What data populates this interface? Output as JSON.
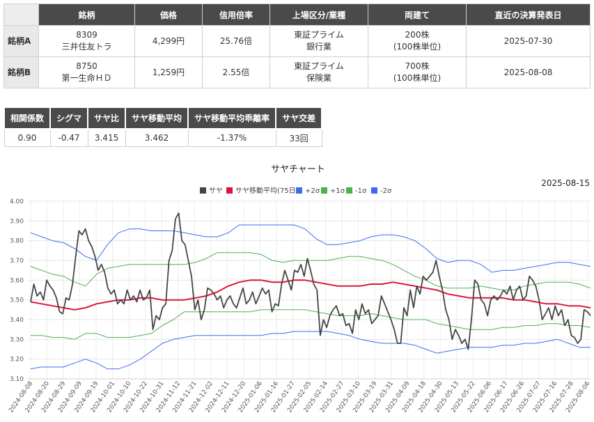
{
  "stock_table": {
    "headers": [
      "銘柄",
      "価格",
      "信用倍率",
      "上場区分/業種",
      "両建て",
      "直近の決算発表日"
    ],
    "rows": [
      {
        "label": "銘柄A",
        "code": "8309",
        "name": "三井住友トラ",
        "price": "4,299円",
        "margin_ratio": "25.76倍",
        "market": "東証プライム",
        "industry": "銀行業",
        "both": "200株",
        "unit": "(100株単位)",
        "earnings": "2025-07-30"
      },
      {
        "label": "銘柄B",
        "code": "8750",
        "name": "第一生命ＨＤ",
        "price": "1,259円",
        "margin_ratio": "2.55倍",
        "market": "東証プライム",
        "industry": "保険業",
        "both": "700株",
        "unit": "(100株単位)",
        "earnings": "2025-08-08"
      }
    ]
  },
  "stats_table": {
    "headers": [
      "相関係数",
      "シグマ",
      "サヤ比",
      "サヤ移動平均",
      "サヤ移動平均乖離率",
      "サヤ交差"
    ],
    "values": [
      "0.90",
      "-0.47",
      "3.415",
      "3.462",
      "-1.37%",
      "33回"
    ]
  },
  "chart_data": {
    "type": "line",
    "title": "サヤチャート",
    "date_label": "2025-08-15",
    "ylim": [
      3.1,
      4.0
    ],
    "yticks": [
      "4.00",
      "3.90",
      "3.80",
      "3.70",
      "3.60",
      "3.50",
      "3.40",
      "3.30",
      "3.20",
      "3.10"
    ],
    "xticks": [
      "2024-08-08",
      "2024-08-20",
      "2024-08-29",
      "2024-09-09",
      "2024-09-19",
      "2024-10-01",
      "2024-10-10",
      "2024-10-22",
      "2024-10-31",
      "2024-11-12",
      "2024-11-21",
      "2024-12-02",
      "2024-12-11",
      "2024-12-20",
      "2025-01-06",
      "2025-01-16",
      "2025-01-27",
      "2025-02-05",
      "2025-02-14",
      "2025-02-27",
      "2025-03-10",
      "2025-03-19",
      "2025-03-31",
      "2025-04-09",
      "2025-04-18",
      "2025-04-30",
      "2025-05-13",
      "2025-05-22",
      "2025-06-06",
      "2025-06-17",
      "2025-06-26",
      "2025-07-07",
      "2025-07-16",
      "2025-07-28",
      "2025-08-06"
    ],
    "grid": true,
    "legend_position": "top",
    "series": [
      {
        "name": "サヤ",
        "color": "#444444",
        "width": 1.8,
        "values": [
          3.49,
          3.58,
          3.52,
          3.54,
          3.5,
          3.6,
          3.57,
          3.55,
          3.51,
          3.44,
          3.43,
          3.51,
          3.5,
          3.58,
          3.72,
          3.85,
          3.83,
          3.86,
          3.8,
          3.77,
          3.72,
          3.65,
          3.68,
          3.64,
          3.56,
          3.53,
          3.55,
          3.48,
          3.5,
          3.48,
          3.55,
          3.5,
          3.52,
          3.49,
          3.55,
          3.5,
          3.51,
          3.55,
          3.35,
          3.42,
          3.4,
          3.46,
          3.48,
          3.7,
          3.75,
          3.91,
          3.94,
          3.8,
          3.78,
          3.7,
          3.62,
          3.45,
          3.5,
          3.4,
          3.45,
          3.56,
          3.55,
          3.53,
          3.5,
          3.52,
          3.46,
          3.5,
          3.52,
          3.48,
          3.46,
          3.51,
          3.56,
          3.48,
          3.5,
          3.54,
          3.48,
          3.52,
          3.56,
          3.53,
          3.55,
          3.44,
          3.48,
          3.47,
          3.58,
          3.65,
          3.6,
          3.55,
          3.65,
          3.64,
          3.68,
          3.62,
          3.71,
          3.65,
          3.58,
          3.55,
          3.32,
          3.4,
          3.36,
          3.42,
          3.45,
          3.47,
          3.42,
          3.43,
          3.37,
          3.38,
          3.33,
          3.45,
          3.4,
          3.48,
          3.43,
          3.45,
          3.38,
          3.4,
          3.42,
          3.52,
          3.48,
          3.44,
          3.4,
          3.35,
          3.28,
          3.28,
          3.46,
          3.42,
          3.55,
          3.46,
          3.57,
          3.53,
          3.62,
          3.6,
          3.62,
          3.64,
          3.7,
          3.62,
          3.55,
          3.45,
          3.4,
          3.3,
          3.35,
          3.32,
          3.28,
          3.3,
          3.25,
          3.4,
          3.6,
          3.58,
          3.5,
          3.48,
          3.42,
          3.5,
          3.52,
          3.5,
          3.52,
          3.55,
          3.53,
          3.57,
          3.5,
          3.55,
          3.57,
          3.5,
          3.52,
          3.62,
          3.6,
          3.57,
          3.5,
          3.4,
          3.43,
          3.46,
          3.4,
          3.47,
          3.42,
          3.45,
          3.37,
          3.4,
          3.32,
          3.31,
          3.28,
          3.3,
          3.45,
          3.44,
          3.42
        ]
      },
      {
        "name": "サヤ移動平均(75日)",
        "color": "#dc143c",
        "width": 2,
        "values": [
          3.49,
          3.48,
          3.47,
          3.46,
          3.45,
          3.46,
          3.48,
          3.49,
          3.5,
          3.5,
          3.51,
          3.51,
          3.5,
          3.5,
          3.5,
          3.51,
          3.52,
          3.54,
          3.57,
          3.59,
          3.6,
          3.6,
          3.59,
          3.59,
          3.6,
          3.6,
          3.59,
          3.58,
          3.57,
          3.57,
          3.57,
          3.58,
          3.58,
          3.59,
          3.58,
          3.57,
          3.56,
          3.55,
          3.53,
          3.52,
          3.51,
          3.51,
          3.51,
          3.51,
          3.5,
          3.5,
          3.49,
          3.48,
          3.48,
          3.47,
          3.47,
          3.46
        ]
      },
      {
        "name": "+2σ",
        "color": "#3b6cf0",
        "width": 1,
        "values": [
          3.84,
          3.82,
          3.8,
          3.79,
          3.76,
          3.72,
          3.7,
          3.78,
          3.84,
          3.86,
          3.86,
          3.85,
          3.85,
          3.85,
          3.84,
          3.83,
          3.82,
          3.82,
          3.84,
          3.88,
          3.88,
          3.88,
          3.88,
          3.88,
          3.88,
          3.86,
          3.81,
          3.78,
          3.78,
          3.79,
          3.8,
          3.82,
          3.83,
          3.83,
          3.82,
          3.8,
          3.76,
          3.71,
          3.69,
          3.7,
          3.7,
          3.68,
          3.64,
          3.65,
          3.65,
          3.66,
          3.67,
          3.68,
          3.69,
          3.69,
          3.68,
          3.67
        ]
      },
      {
        "name": "+1σ",
        "color": "#4caf50",
        "width": 1,
        "values": [
          3.67,
          3.65,
          3.63,
          3.62,
          3.59,
          3.57,
          3.63,
          3.66,
          3.67,
          3.68,
          3.68,
          3.68,
          3.68,
          3.68,
          3.68,
          3.69,
          3.71,
          3.74,
          3.74,
          3.74,
          3.74,
          3.73,
          3.7,
          3.69,
          3.7,
          3.7,
          3.7,
          3.7,
          3.71,
          3.72,
          3.72,
          3.71,
          3.7,
          3.68,
          3.65,
          3.62,
          3.6,
          3.57,
          3.56,
          3.56,
          3.56,
          3.57,
          3.56,
          3.55,
          3.55,
          3.57,
          3.58,
          3.59,
          3.59,
          3.59,
          3.58,
          3.56
        ]
      },
      {
        "name": "-1σ",
        "color": "#4caf50",
        "width": 1,
        "values": [
          3.32,
          3.32,
          3.31,
          3.31,
          3.3,
          3.33,
          3.33,
          3.31,
          3.31,
          3.31,
          3.32,
          3.33,
          3.37,
          3.4,
          3.44,
          3.44,
          3.44,
          3.44,
          3.44,
          3.44,
          3.44,
          3.45,
          3.45,
          3.45,
          3.45,
          3.45,
          3.44,
          3.43,
          3.42,
          3.42,
          3.42,
          3.43,
          3.42,
          3.41,
          3.4,
          3.4,
          3.4,
          3.38,
          3.37,
          3.36,
          3.35,
          3.35,
          3.35,
          3.36,
          3.36,
          3.37,
          3.37,
          3.38,
          3.38,
          3.37,
          3.37,
          3.36
        ]
      },
      {
        "name": "-2σ",
        "color": "#3b6cf0",
        "width": 1,
        "values": [
          3.15,
          3.16,
          3.16,
          3.16,
          3.18,
          3.2,
          3.18,
          3.15,
          3.15,
          3.17,
          3.2,
          3.24,
          3.28,
          3.3,
          3.31,
          3.32,
          3.32,
          3.32,
          3.32,
          3.32,
          3.32,
          3.32,
          3.33,
          3.33,
          3.34,
          3.34,
          3.34,
          3.34,
          3.33,
          3.32,
          3.3,
          3.29,
          3.28,
          3.28,
          3.28,
          3.27,
          3.25,
          3.23,
          3.24,
          3.25,
          3.26,
          3.26,
          3.26,
          3.27,
          3.27,
          3.28,
          3.28,
          3.29,
          3.3,
          3.28,
          3.26,
          3.26
        ]
      }
    ]
  }
}
